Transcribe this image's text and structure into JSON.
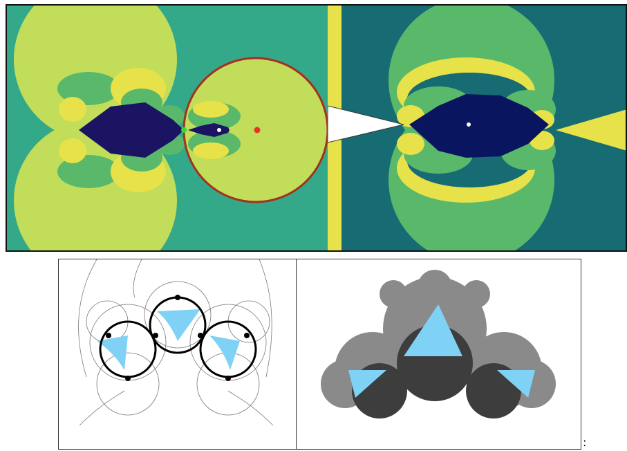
{
  "figure": {
    "panels": [
      {
        "id": "top-left",
        "description_icon": "julia-set-fixed-point-panel"
      },
      {
        "id": "top-right",
        "description_icon": "julia-set-mated-panel"
      },
      {
        "id": "bot-left",
        "description_icon": "circle-packing-limit-set-panel"
      },
      {
        "id": "bot-right",
        "description_icon": "grayscale-limit-set-panel"
      }
    ],
    "colors": {
      "teal": "#34a989",
      "light_green": "#c1dd5a",
      "yellow": "#e7e24a",
      "mid_green": "#5ab86a",
      "dark_teal": "#176b73",
      "navy": "#1b1463",
      "deep_navy": "#0a1560",
      "red_circle": "#a4301f",
      "red_point": "#e8361c",
      "green_point": "#3ad633",
      "light_blue": "#7fd2f5"
    },
    "trailing_text": ":"
  }
}
